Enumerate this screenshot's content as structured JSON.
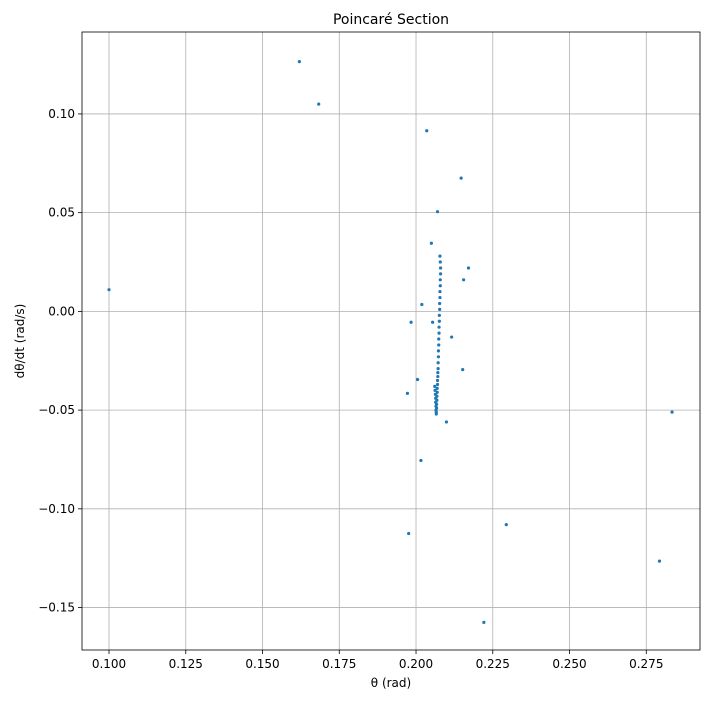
{
  "chart_data": {
    "type": "scatter",
    "title": "Poincaré Section",
    "xlabel": "θ (rad)",
    "ylabel": "dθ/dt (rad/s)",
    "xlim": [
      0.0912,
      0.2925
    ],
    "ylim": [
      -0.1715,
      0.1415
    ],
    "xticks": [
      0.1,
      0.125,
      0.15,
      0.175,
      0.2,
      0.225,
      0.25,
      0.275
    ],
    "xtick_labels": [
      "0.100",
      "0.125",
      "0.150",
      "0.175",
      "0.200",
      "0.225",
      "0.250",
      "0.275"
    ],
    "yticks": [
      -0.15,
      -0.1,
      -0.05,
      0.0,
      0.05,
      0.1
    ],
    "ytick_labels": [
      "−0.15",
      "−0.10",
      "−0.05",
      "0.00",
      "0.05",
      "0.10"
    ],
    "grid": true,
    "marker_color": "#1f77b4",
    "marker_size": 1.6,
    "x": [
      0.1,
      0.162,
      0.1683,
      0.2035,
      0.2147,
      0.207,
      0.205,
      0.2171,
      0.2155,
      0.2019,
      0.1984,
      0.2054,
      0.2116,
      0.2152,
      0.2005,
      0.1972,
      0.2099,
      0.2016,
      0.2834,
      0.1976,
      0.2294,
      0.2793,
      0.2221,
      0.2078,
      0.2079,
      0.208,
      0.208,
      0.2079,
      0.2079,
      0.2078,
      0.2078,
      0.2077,
      0.2077,
      0.2076,
      0.2076,
      0.2075,
      0.2075,
      0.2074,
      0.2074,
      0.2073,
      0.2073,
      0.2072,
      0.2072,
      0.2071,
      0.2071,
      0.207,
      0.207,
      0.2069,
      0.2069,
      0.2068,
      0.2068,
      0.2067,
      0.2067,
      0.2066,
      0.2066,
      0.2065,
      0.2065,
      0.2064,
      0.2064,
      0.2063,
      0.2062,
      0.2061
    ],
    "y": [
      0.011,
      0.1265,
      0.105,
      0.0915,
      0.0675,
      0.0505,
      0.0345,
      0.022,
      0.016,
      0.0035,
      -0.0055,
      -0.0055,
      -0.013,
      -0.0295,
      -0.0345,
      -0.0415,
      -0.056,
      -0.0755,
      -0.051,
      -0.1125,
      -0.108,
      -0.1265,
      -0.1575,
      0.028,
      0.025,
      0.022,
      0.019,
      0.016,
      0.013,
      0.01,
      0.007,
      0.004,
      0.001,
      -0.002,
      -0.005,
      -0.008,
      -0.011,
      -0.014,
      -0.017,
      -0.02,
      -0.023,
      -0.026,
      -0.029,
      -0.031,
      -0.033,
      -0.035,
      -0.037,
      -0.039,
      -0.041,
      -0.043,
      -0.045,
      -0.047,
      -0.049,
      -0.051,
      -0.052,
      -0.05,
      -0.048,
      -0.046,
      -0.044,
      -0.042,
      -0.04,
      -0.038
    ]
  }
}
